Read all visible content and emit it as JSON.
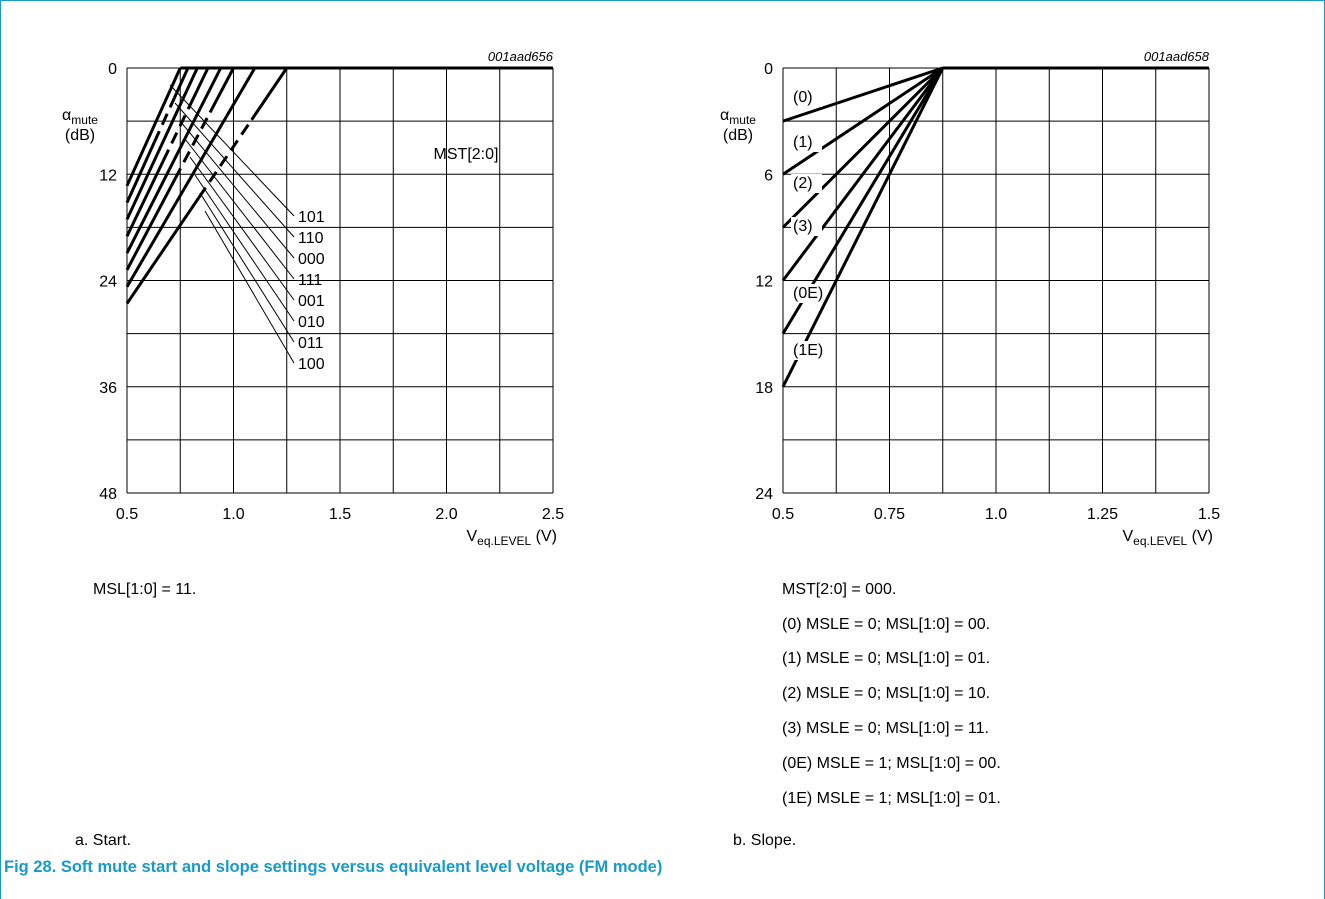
{
  "chart_data": [
    {
      "type": "line",
      "id": "001aad656",
      "xlabel_main": "V",
      "xlabel_sub": "eq.LEVEL",
      "xlabel_unit": " (V)",
      "ylabel_main": "α",
      "ylabel_sub": "mute",
      "ylabel_unit": "(dB)",
      "xlim": [
        0.5,
        2.5
      ],
      "ylim": [
        0,
        48
      ],
      "x_ticks": [
        "0.5",
        "1.0",
        "1.5",
        "2.0",
        "2.5"
      ],
      "y_ticks": [
        "0",
        "12",
        "24",
        "36",
        "48"
      ],
      "legend_title": "MST[2:0]",
      "series": [
        {
          "name": "101",
          "points": [
            [
              0.5,
              13.3
            ],
            [
              0.75,
              0
            ],
            [
              2.5,
              0
            ]
          ]
        },
        {
          "name": "110",
          "points": [
            [
              0.5,
              15.2
            ],
            [
              0.786,
              0
            ],
            [
              2.5,
              0
            ]
          ]
        },
        {
          "name": "000",
          "points": [
            [
              0.5,
              17.1
            ],
            [
              0.83,
              0
            ],
            [
              2.5,
              0
            ]
          ]
        },
        {
          "name": "111",
          "points": [
            [
              0.5,
              19.0
            ],
            [
              0.88,
              0
            ],
            [
              2.5,
              0
            ]
          ]
        },
        {
          "name": "001",
          "points": [
            [
              0.5,
              20.9
            ],
            [
              0.94,
              0
            ],
            [
              2.5,
              0
            ]
          ]
        },
        {
          "name": "010",
          "points": [
            [
              0.5,
              22.8
            ],
            [
              1.0,
              0
            ],
            [
              2.5,
              0
            ]
          ]
        },
        {
          "name": "011",
          "points": [
            [
              0.5,
              24.7
            ],
            [
              1.1,
              0
            ],
            [
              2.5,
              0
            ]
          ]
        },
        {
          "name": "100",
          "points": [
            [
              0.5,
              26.6
            ],
            [
              1.25,
              0
            ],
            [
              2.5,
              0
            ]
          ]
        }
      ]
    },
    {
      "type": "line",
      "id": "001aad658",
      "xlabel_main": "V",
      "xlabel_sub": "eq.LEVEL",
      "xlabel_unit": " (V)",
      "ylabel_main": "α",
      "ylabel_sub": "mute",
      "ylabel_unit": "(dB)",
      "xlim": [
        0.5,
        1.5
      ],
      "ylim": [
        0,
        24
      ],
      "x_ticks": [
        "0.5",
        "0.75",
        "1.0",
        "1.25",
        "1.5"
      ],
      "y_ticks": [
        "0",
        "6",
        "12",
        "18",
        "24"
      ],
      "series": [
        {
          "name": "(0)",
          "points": [
            [
              0.5,
              3
            ],
            [
              0.875,
              0
            ],
            [
              1.5,
              0
            ]
          ]
        },
        {
          "name": "(1)",
          "points": [
            [
              0.5,
              6
            ],
            [
              0.875,
              0
            ],
            [
              1.5,
              0
            ]
          ]
        },
        {
          "name": "(2)",
          "points": [
            [
              0.5,
              9
            ],
            [
              0.875,
              0
            ],
            [
              1.5,
              0
            ]
          ]
        },
        {
          "name": "(3)",
          "points": [
            [
              0.5,
              12
            ],
            [
              0.875,
              0
            ],
            [
              1.5,
              0
            ]
          ]
        },
        {
          "name": "(0E)",
          "points": [
            [
              0.5,
              15
            ],
            [
              0.875,
              0
            ],
            [
              1.5,
              0
            ]
          ]
        },
        {
          "name": "(1E)",
          "points": [
            [
              0.5,
              18
            ],
            [
              0.875,
              0
            ],
            [
              1.5,
              0
            ]
          ]
        }
      ]
    }
  ],
  "notes_left": [
    "MSL[1:0] = 11."
  ],
  "notes_right": [
    "MST[2:0] = 000.",
    "(0) MSLE = 0; MSL[1:0] = 00.",
    "(1) MSLE = 0; MSL[1:0] = 01.",
    "(2) MSLE = 0; MSL[1:0] = 10.",
    "(3) MSLE = 0; MSL[1:0] = 11.",
    "(0E) MSLE = 1; MSL[1:0] = 00.",
    "(1E) MSLE = 1; MSL[1:0] = 01."
  ],
  "subcaption_left": "a.  Start.",
  "subcaption_right": "b.  Slope.",
  "figure_caption": "Fig 28.  Soft mute start and slope settings versus equivalent level voltage (FM mode)",
  "colors": {
    "frame": "#1a9bc7",
    "caption": "#1a9bc7",
    "line": "#000000"
  }
}
